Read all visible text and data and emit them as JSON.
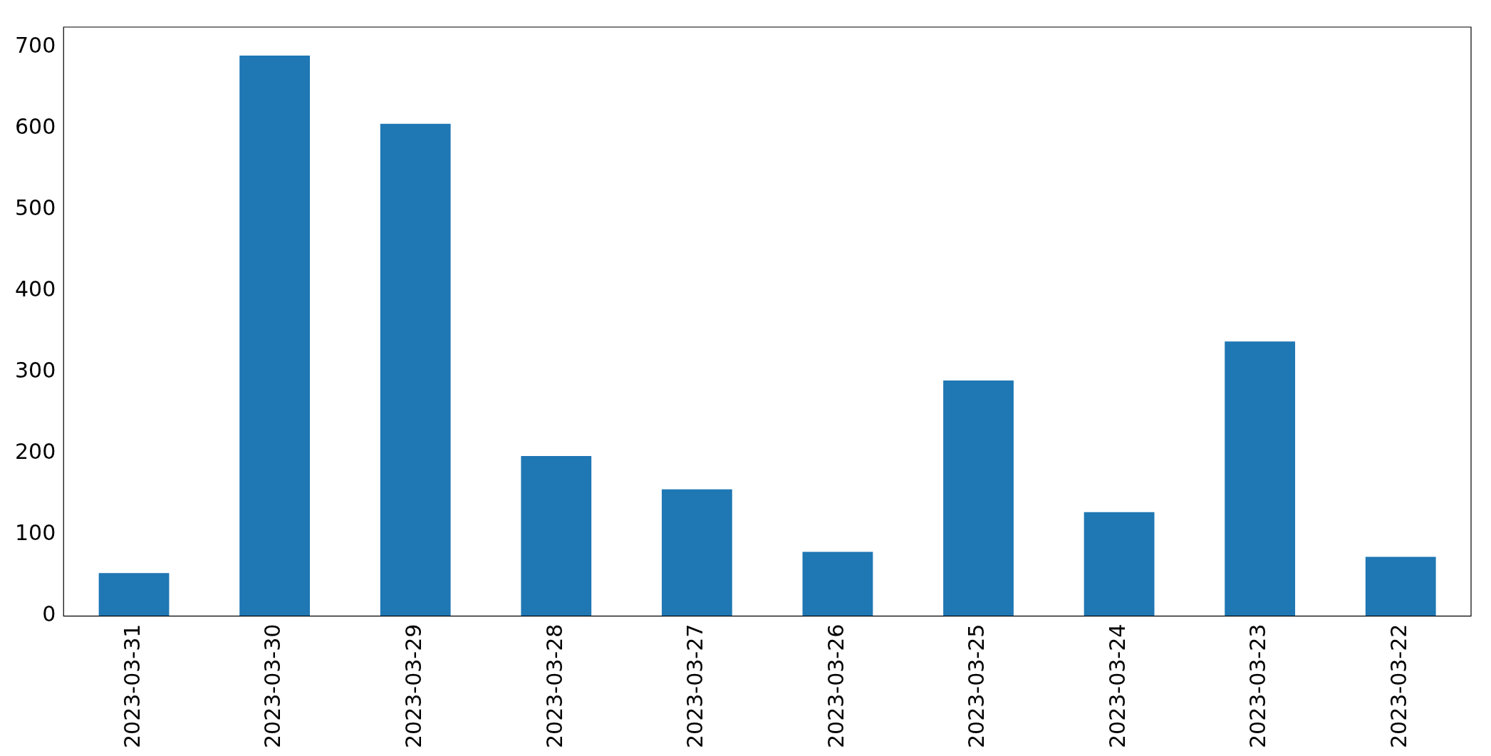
{
  "chart_data": {
    "type": "bar",
    "categories": [
      "2023-03-31",
      "2023-03-30",
      "2023-03-29",
      "2023-03-28",
      "2023-03-27",
      "2023-03-26",
      "2023-03-25",
      "2023-03-24",
      "2023-03-23",
      "2023-03-22"
    ],
    "values": [
      53,
      690,
      606,
      197,
      156,
      79,
      290,
      128,
      338,
      73
    ],
    "color": "#1f77b4",
    "ylim": [
      0,
      725
    ],
    "yticks": [
      0,
      100,
      200,
      300,
      400,
      500,
      600,
      700
    ],
    "grid": false,
    "legend": false
  }
}
